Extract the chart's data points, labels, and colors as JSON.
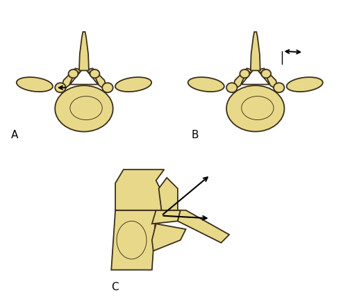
{
  "bg_color": "#ffffff",
  "bone_fill": "#e8d98a",
  "bone_edge": "#3a2e1a",
  "lw": 1.3,
  "fig_width": 5.04,
  "fig_height": 4.32,
  "dpi": 100,
  "label_A": "A",
  "label_B": "B",
  "label_C": "C"
}
